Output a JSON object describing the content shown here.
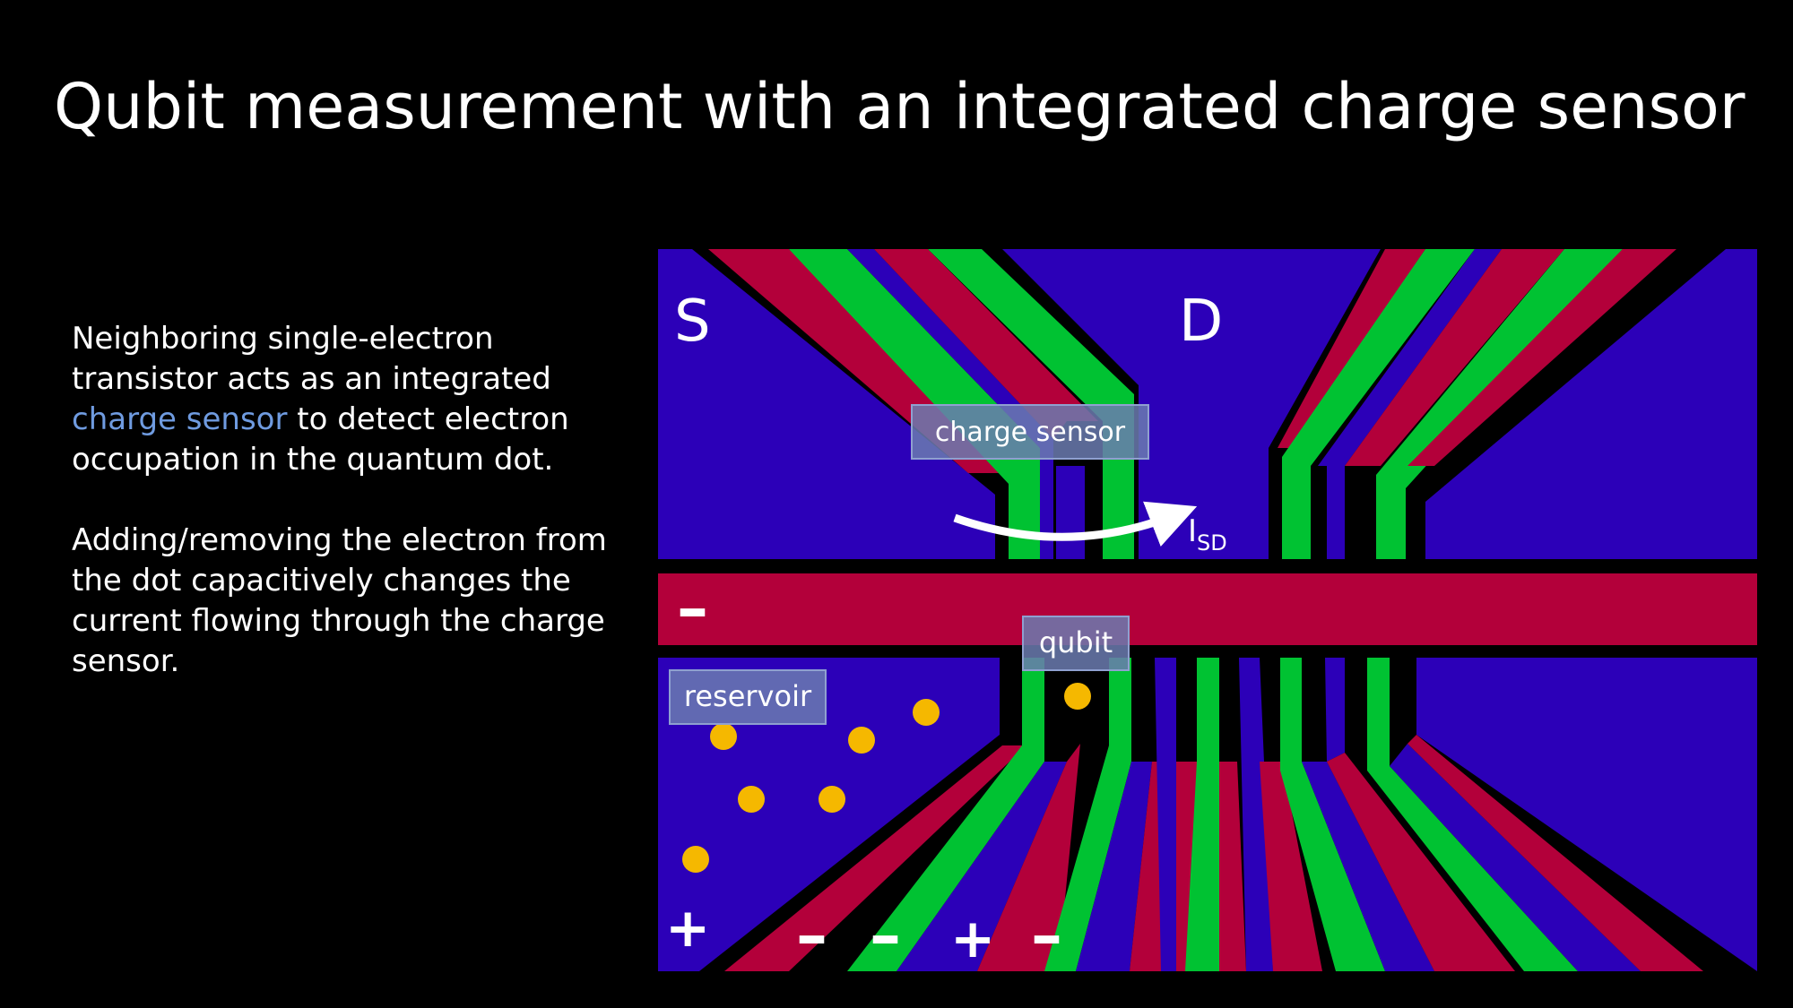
{
  "slide": {
    "title": "Qubit measurement with an integrated charge sensor",
    "paragraph1": {
      "before": "Neighboring single-electron transistor acts as an integrated ",
      "highlight": "charge sensor",
      "after": " to detect electron occupation in the quantum dot."
    },
    "paragraph2": "Adding/removing the electron from the dot capacitively changes the current flowing through the charge sensor."
  },
  "diagram": {
    "labels": {
      "source": "S",
      "drain": "D",
      "charge_sensor": "charge sensor",
      "qubit": "qubit",
      "reservoir": "reservoir",
      "current_main": "I",
      "current_sub": "SD",
      "barrier_sign": "–",
      "reservoir_sign": "+",
      "gate_signs": [
        "–",
        "–",
        "+",
        "–"
      ]
    },
    "colors": {
      "background": "#000000",
      "blue_region": "#2c00b8",
      "red_gate": "#b3003a",
      "green_gate": "#00c232",
      "electron": "#f5b800",
      "label_box": "#6b7bb0"
    }
  }
}
